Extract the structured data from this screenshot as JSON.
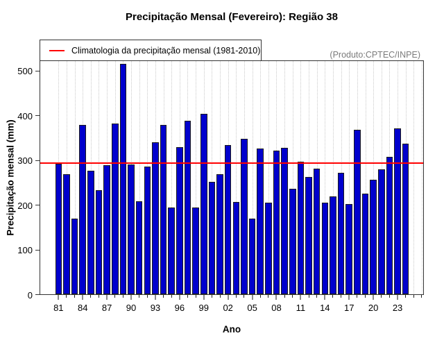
{
  "header": {
    "title": "Precipitação Mensal (Fevereiro): Região 38"
  },
  "annotations": {
    "produto_note": "(Produto:CPTEC/INPE)"
  },
  "legend": {
    "label": "Climatologia da precipitação mensal (1981-2010)"
  },
  "axes": {
    "xlabel": "Ano",
    "ylabel": "Precipitação mensal (mm)"
  },
  "colors": {
    "bar_fill": "#0000CD",
    "bar_border": "#1a1a1a",
    "climatology_line": "#ff0000",
    "grid": "#c9c9c9",
    "produto_text": "#7b7b7b"
  },
  "chart_data": {
    "type": "bar",
    "title": "Precipitação Mensal (Fevereiro): Região 38",
    "xlabel": "Ano",
    "ylabel": "Precipitação mensal (mm)",
    "years": [
      1981,
      1982,
      1983,
      1984,
      1985,
      1986,
      1987,
      1988,
      1989,
      1990,
      1991,
      1992,
      1993,
      1994,
      1995,
      1996,
      1997,
      1998,
      1999,
      2000,
      2001,
      2002,
      2003,
      2004,
      2005,
      2006,
      2007,
      2008,
      2009,
      2010,
      2011,
      2012,
      2013,
      2014,
      2015,
      2016,
      2017,
      2018,
      2019,
      2020,
      2021,
      2022,
      2023,
      2024
    ],
    "values": [
      292,
      269,
      170,
      380,
      277,
      233,
      290,
      383,
      516,
      291,
      208,
      286,
      341,
      379,
      195,
      330,
      388,
      195,
      404,
      252,
      269,
      334,
      207,
      349,
      170,
      326,
      206,
      322,
      328,
      236,
      297,
      263,
      282,
      205,
      219,
      272,
      203,
      369,
      225,
      256,
      280,
      308,
      372,
      337
    ],
    "climatology_value": 294,
    "legend_entry": "Climatologia da precipitação mensal (1981-2010)",
    "ylim": [
      0,
      523
    ],
    "yticks": [
      0,
      100,
      200,
      300,
      400,
      500
    ],
    "x_tick_label_years": [
      1981,
      1984,
      1987,
      1990,
      1993,
      1996,
      1999,
      2002,
      2005,
      2008,
      2011,
      2014,
      2017,
      2020,
      2023
    ],
    "x_tick_labels": [
      "81",
      "84",
      "87",
      "90",
      "93",
      "96",
      "99",
      "02",
      "05",
      "08",
      "11",
      "14",
      "17",
      "20",
      "23"
    ],
    "x_minor_tick_last_year": 2026,
    "grid": "vertical-dotted",
    "legend_position": "top-left"
  }
}
